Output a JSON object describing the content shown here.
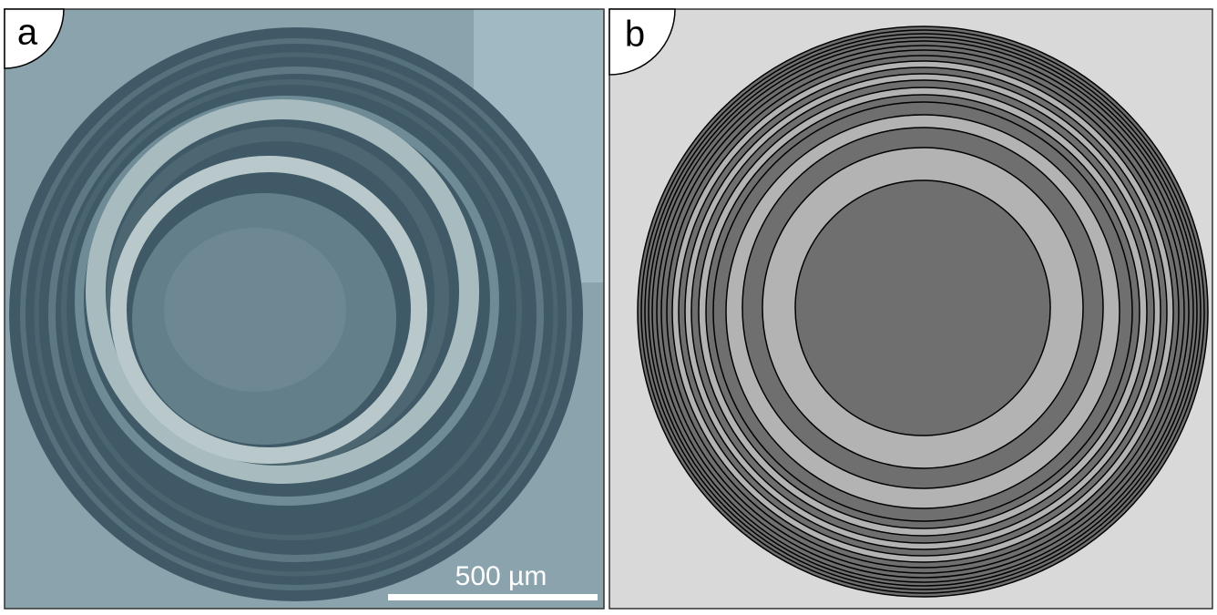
{
  "panels": [
    {
      "label": "a"
    },
    {
      "label": "b"
    }
  ],
  "scale_bar": {
    "label": "500 µm"
  }
}
